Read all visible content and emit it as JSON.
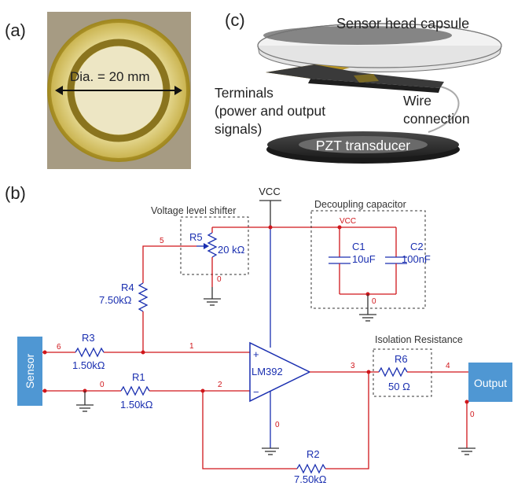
{
  "panels": {
    "a": "(a)",
    "b": "(b)",
    "c": "(c)"
  },
  "photo": {
    "dimension_label": "Dia. = 20 mm"
  },
  "render": {
    "capsule_label": "Sensor head capsule",
    "terminals_line1": "Terminals",
    "terminals_line2": "(power and output",
    "terminals_line3": "signals)",
    "wire_line1": "Wire",
    "wire_line2": "connection",
    "pzt_label": "PZT transducer"
  },
  "circuit": {
    "vcc_label": "VCC",
    "vcc_net_label": "VCC",
    "shifter_label": "Voltage level shifter",
    "decoupling_label": "Decoupling capacitor",
    "isolation_label": "Isolation Resistance",
    "sensor_label": "Sensor",
    "output_label": "Output",
    "opamp_label": "LM392",
    "opamp_plus": "+",
    "opamp_minus": "−",
    "components": {
      "r5_name": "R5",
      "r5_value": "20 kΩ",
      "r4_name": "R4",
      "r4_value": "7.50kΩ",
      "r3_name": "R3",
      "r3_value": "1.50kΩ",
      "r1_name": "R1",
      "r1_value": "1.50kΩ",
      "r2_name": "R2",
      "r2_value": "7.50kΩ",
      "r6_name": "R6",
      "r6_value": "50 Ω",
      "c1_name": "C1",
      "c1_value": "10uF",
      "c2_name": "C2",
      "c2_value": "100nF"
    },
    "nodes": {
      "n5": "5",
      "n0_pot": "0",
      "n0_cap": "0",
      "n6": "6",
      "n1": "1",
      "n0_sensor": "0",
      "n2": "2",
      "n0_opamp": "0",
      "n3": "3",
      "n4": "4",
      "n0_out": "0"
    }
  },
  "colors": {
    "wire": "#d0161b",
    "component": "#1a2fb0",
    "sensor_box": "#4f97d3",
    "output_box": "#4f97d3"
  }
}
